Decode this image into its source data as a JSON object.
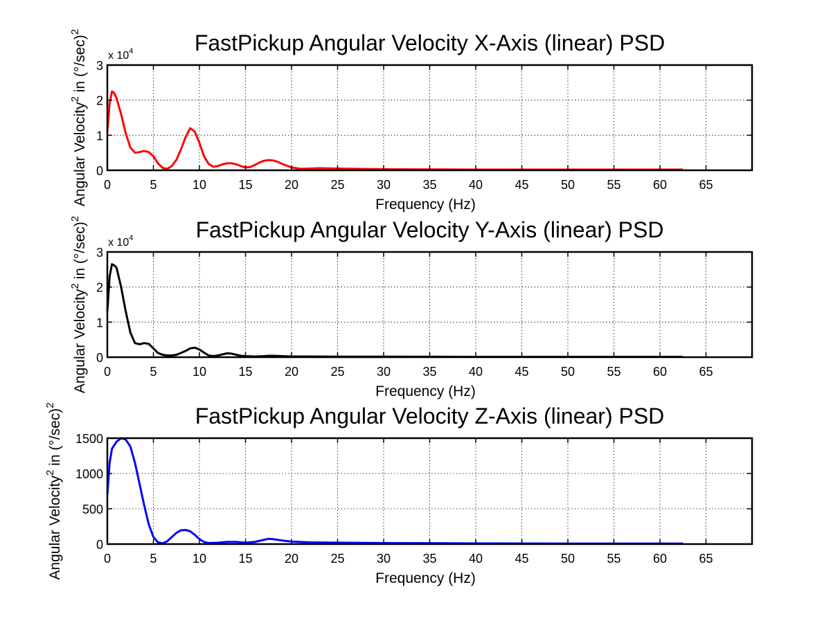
{
  "chart_data": [
    {
      "type": "line",
      "title": "FastPickup Angular Velocity X-Axis (linear) PSD",
      "xlabel": "Frequency (Hz)",
      "ylabel": "Angular Velocity",
      "ylabel_sup": "2",
      "ylabel_tail": " in (°/sec)",
      "ylabel_tail_sup": "2",
      "exponent_base": "x 10",
      "exponent_power": "4",
      "xlim": [
        0,
        70
      ],
      "ylim": [
        0,
        3
      ],
      "xticks": [
        0,
        5,
        10,
        15,
        20,
        25,
        30,
        35,
        40,
        45,
        50,
        55,
        60,
        65
      ],
      "yticks": [
        0,
        1,
        2,
        3
      ],
      "grid": true,
      "series": [
        {
          "color": "#ff0000",
          "x": [
            0,
            0.25,
            0.5,
            0.75,
            1.0,
            1.5,
            2.0,
            2.5,
            3.0,
            3.5,
            4.0,
            4.5,
            5.0,
            5.5,
            6.0,
            6.5,
            7.0,
            7.5,
            8.0,
            8.5,
            9.0,
            9.5,
            10.0,
            10.5,
            11.0,
            11.5,
            12.0,
            12.5,
            13.0,
            13.5,
            14.0,
            14.5,
            15.0,
            15.5,
            16.0,
            16.5,
            17.0,
            17.5,
            18.0,
            18.5,
            19.0,
            20.0,
            21.0,
            22.0,
            23.0,
            25.0,
            27.5,
            30.0,
            35.0,
            40.0,
            45.0,
            50.0,
            55.0,
            60.0,
            62.5
          ],
          "y": [
            1.1,
            1.9,
            2.25,
            2.2,
            2.05,
            1.6,
            1.05,
            0.65,
            0.5,
            0.52,
            0.55,
            0.52,
            0.4,
            0.2,
            0.07,
            0.04,
            0.12,
            0.3,
            0.6,
            0.95,
            1.2,
            1.1,
            0.78,
            0.4,
            0.18,
            0.1,
            0.12,
            0.17,
            0.2,
            0.2,
            0.17,
            0.12,
            0.08,
            0.09,
            0.15,
            0.22,
            0.27,
            0.29,
            0.28,
            0.24,
            0.18,
            0.08,
            0.04,
            0.05,
            0.06,
            0.05,
            0.04,
            0.03,
            0.025,
            0.02,
            0.02,
            0.02,
            0.02,
            0.02,
            0.02
          ]
        }
      ]
    },
    {
      "type": "line",
      "title": "FastPickup Angular Velocity Y-Axis (linear) PSD",
      "xlabel": "Frequency (Hz)",
      "ylabel": "Angular Velocity",
      "ylabel_sup": "2",
      "ylabel_tail": " in (°/sec)",
      "ylabel_tail_sup": "2",
      "exponent_base": "x 10",
      "exponent_power": "4",
      "xlim": [
        0,
        70
      ],
      "ylim": [
        0,
        3
      ],
      "xticks": [
        0,
        5,
        10,
        15,
        20,
        25,
        30,
        35,
        40,
        45,
        50,
        55,
        60,
        65
      ],
      "yticks": [
        0,
        1,
        2,
        3
      ],
      "grid": true,
      "series": [
        {
          "color": "#000000",
          "x": [
            0,
            0.25,
            0.5,
            0.75,
            1.0,
            1.5,
            2.0,
            2.5,
            3.0,
            3.5,
            4.0,
            4.5,
            5.0,
            5.5,
            6.0,
            6.5,
            7.0,
            7.5,
            8.0,
            8.5,
            9.0,
            9.5,
            10.0,
            10.5,
            11.0,
            11.5,
            12.0,
            12.5,
            13.0,
            13.5,
            14.0,
            14.5,
            15.0,
            16.0,
            17.0,
            17.5,
            18.0,
            19.0,
            20.0,
            22.0,
            25.0,
            30.0,
            40.0,
            50.0,
            60.0,
            62.5
          ],
          "y": [
            1.3,
            2.3,
            2.65,
            2.62,
            2.55,
            2.0,
            1.3,
            0.7,
            0.4,
            0.37,
            0.4,
            0.38,
            0.25,
            0.12,
            0.07,
            0.05,
            0.05,
            0.07,
            0.12,
            0.18,
            0.25,
            0.27,
            0.22,
            0.13,
            0.05,
            0.03,
            0.05,
            0.08,
            0.11,
            0.1,
            0.07,
            0.04,
            0.03,
            0.02,
            0.03,
            0.04,
            0.04,
            0.03,
            0.02,
            0.02,
            0.015,
            0.015,
            0.01,
            0.01,
            0.01,
            0.01
          ]
        }
      ]
    },
    {
      "type": "line",
      "title": "FastPickup Angular Velocity Z-Axis (linear) PSD",
      "xlabel": "Frequency (Hz)",
      "ylabel": "Angular Velocity",
      "ylabel_sup": "2",
      "ylabel_tail": " in (°/sec)",
      "ylabel_tail_sup": "2",
      "exponent_base": "",
      "exponent_power": "",
      "xlim": [
        0,
        70
      ],
      "ylim": [
        0,
        1500
      ],
      "xticks": [
        0,
        5,
        10,
        15,
        20,
        25,
        30,
        35,
        40,
        45,
        50,
        55,
        60,
        65
      ],
      "yticks": [
        0,
        500,
        1000,
        1500
      ],
      "grid": true,
      "series": [
        {
          "color": "#0000ff",
          "x": [
            0,
            0.25,
            0.5,
            1.0,
            1.5,
            2.0,
            2.5,
            3.0,
            3.5,
            4.0,
            4.5,
            5.0,
            5.5,
            6.0,
            6.5,
            7.0,
            7.5,
            8.0,
            8.5,
            9.0,
            9.5,
            10.0,
            10.5,
            11.0,
            12.0,
            13.0,
            14.0,
            15.0,
            16.0,
            17.0,
            17.5,
            18.0,
            19.0,
            20.0,
            22.0,
            25.0,
            30.0,
            40.0,
            50.0,
            60.0,
            62.5
          ],
          "y": [
            700,
            1150,
            1350,
            1450,
            1500,
            1480,
            1380,
            1150,
            850,
            550,
            280,
            100,
            25,
            10,
            40,
            100,
            160,
            195,
            200,
            180,
            130,
            70,
            30,
            15,
            20,
            30,
            30,
            20,
            30,
            60,
            75,
            70,
            50,
            35,
            25,
            20,
            15,
            10,
            8,
            8,
            8
          ]
        }
      ]
    }
  ]
}
